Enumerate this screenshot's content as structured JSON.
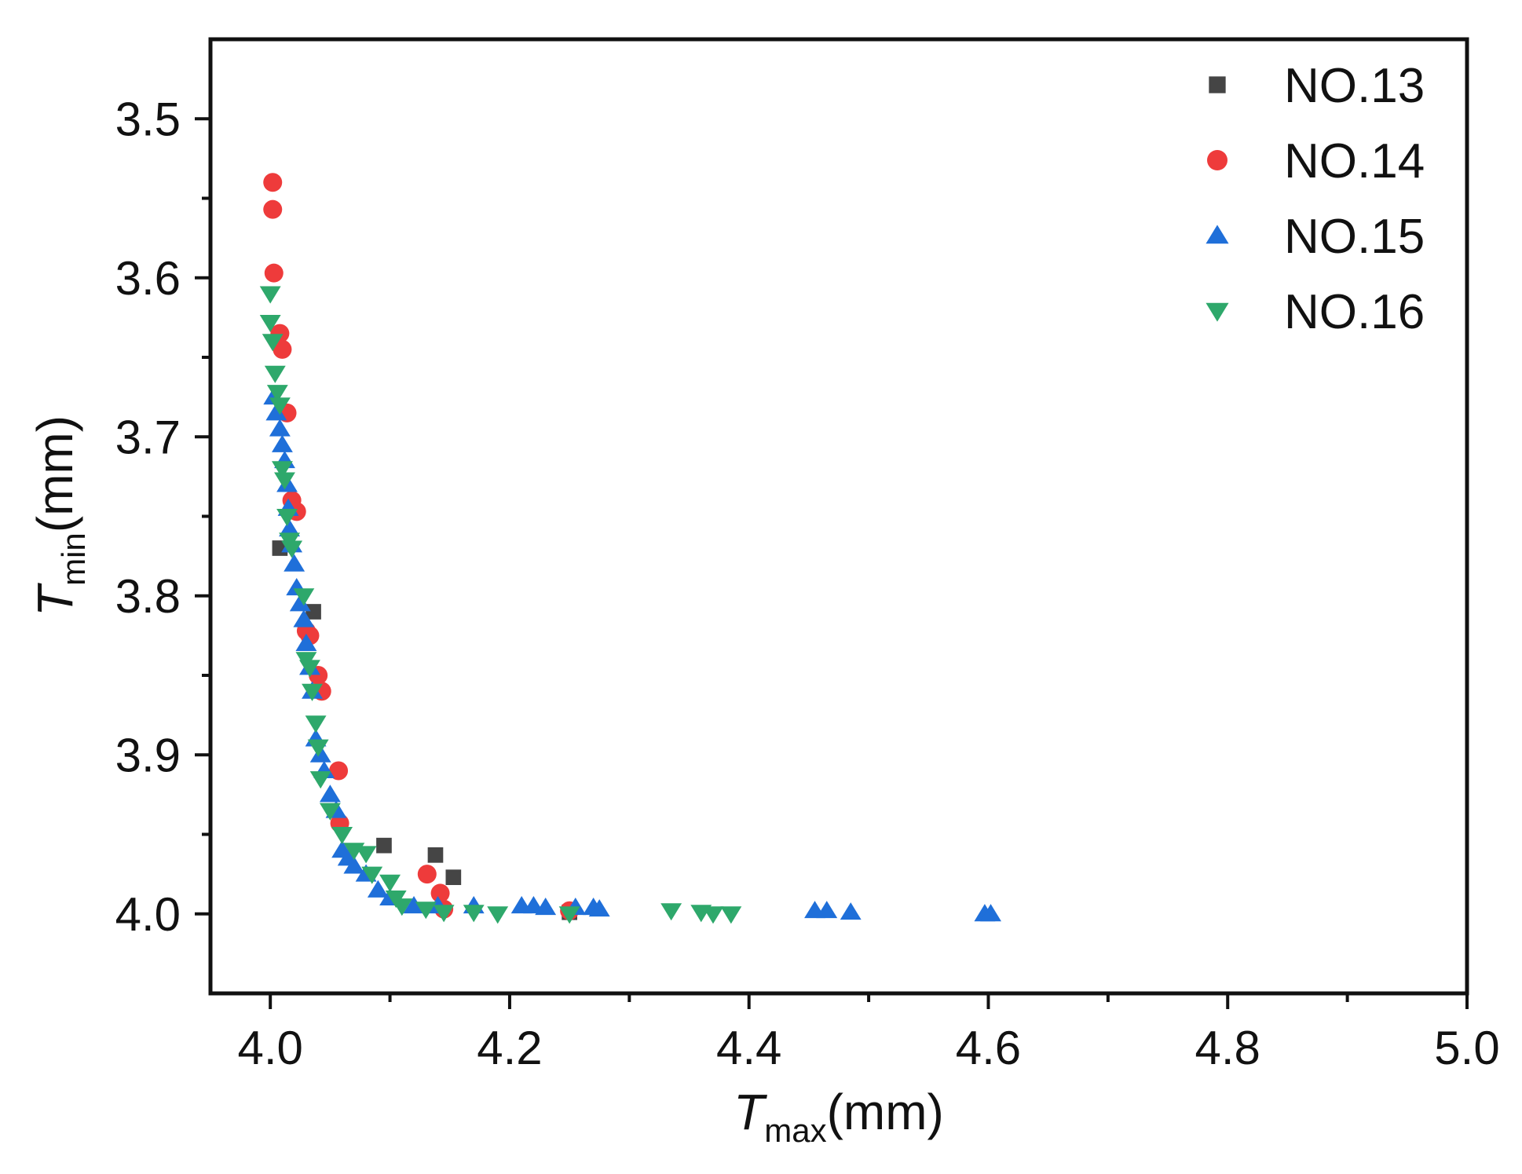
{
  "chart_data": {
    "type": "scatter",
    "title": "",
    "xlabel": {
      "main": "T",
      "sub": "max",
      "unit": "(mm)"
    },
    "ylabel": {
      "main": "T",
      "sub": "min",
      "unit": "(mm)"
    },
    "xlim": [
      3.95,
      5.0
    ],
    "ylim": [
      4.05,
      3.45
    ],
    "y_inverted": true,
    "x_ticks": [
      "4.0",
      "4.2",
      "4.4",
      "4.6",
      "4.8",
      "5.0"
    ],
    "x_tick_values": [
      4.0,
      4.2,
      4.4,
      4.6,
      4.8,
      5.0
    ],
    "x_minor_values": [
      4.1,
      4.3,
      4.5,
      4.7,
      4.9
    ],
    "y_ticks": [
      "3.5",
      "3.6",
      "3.7",
      "3.8",
      "3.9",
      "4.0"
    ],
    "y_tick_values": [
      3.5,
      3.6,
      3.7,
      3.8,
      3.9,
      4.0
    ],
    "y_minor_values": [
      3.55,
      3.65,
      3.75,
      3.85,
      3.95
    ],
    "grid": false,
    "legend_position": "top-right",
    "series": [
      {
        "name": "NO.13",
        "marker": "square",
        "color": "#454545",
        "points": [
          [
            4.008,
            3.77
          ],
          [
            4.036,
            3.81
          ],
          [
            4.095,
            3.957
          ],
          [
            4.138,
            3.963
          ],
          [
            4.153,
            3.977
          ],
          [
            4.25,
            3.999
          ]
        ]
      },
      {
        "name": "NO.14",
        "marker": "circle",
        "color": "#ee3b3b",
        "points": [
          [
            4.002,
            3.54
          ],
          [
            4.002,
            3.557
          ],
          [
            4.003,
            3.597
          ],
          [
            4.008,
            3.635
          ],
          [
            4.01,
            3.645
          ],
          [
            4.014,
            3.685
          ],
          [
            4.018,
            3.74
          ],
          [
            4.022,
            3.747
          ],
          [
            4.03,
            3.822
          ],
          [
            4.033,
            3.825
          ],
          [
            4.04,
            3.85
          ],
          [
            4.043,
            3.86
          ],
          [
            4.057,
            3.91
          ],
          [
            4.058,
            3.943
          ],
          [
            4.131,
            3.975
          ],
          [
            4.142,
            3.987
          ],
          [
            4.145,
            3.997
          ],
          [
            4.25,
            3.998
          ]
        ]
      },
      {
        "name": "NO.15",
        "marker": "triangle-up",
        "color": "#1f6fd9",
        "points": [
          [
            4.003,
            3.675
          ],
          [
            4.005,
            3.685
          ],
          [
            4.008,
            3.695
          ],
          [
            4.01,
            3.705
          ],
          [
            4.012,
            3.715
          ],
          [
            4.014,
            3.73
          ],
          [
            4.015,
            3.745
          ],
          [
            4.016,
            3.758
          ],
          [
            4.018,
            3.768
          ],
          [
            4.02,
            3.78
          ],
          [
            4.022,
            3.795
          ],
          [
            4.025,
            3.805
          ],
          [
            4.028,
            3.815
          ],
          [
            4.03,
            3.83
          ],
          [
            4.033,
            3.845
          ],
          [
            4.035,
            3.86
          ],
          [
            4.038,
            3.89
          ],
          [
            4.042,
            3.9
          ],
          [
            4.045,
            3.91
          ],
          [
            4.05,
            3.925
          ],
          [
            4.055,
            3.935
          ],
          [
            4.06,
            3.96
          ],
          [
            4.065,
            3.965
          ],
          [
            4.07,
            3.97
          ],
          [
            4.08,
            3.975
          ],
          [
            4.09,
            3.985
          ],
          [
            4.1,
            3.99
          ],
          [
            4.12,
            3.995
          ],
          [
            4.14,
            3.995
          ],
          [
            4.17,
            3.995
          ],
          [
            4.21,
            3.995
          ],
          [
            4.22,
            3.995
          ],
          [
            4.23,
            3.996
          ],
          [
            4.255,
            3.996
          ],
          [
            4.27,
            3.996
          ],
          [
            4.275,
            3.997
          ],
          [
            4.455,
            3.998
          ],
          [
            4.465,
            3.998
          ],
          [
            4.485,
            3.999
          ],
          [
            4.597,
            4.0
          ],
          [
            4.602,
            4.0
          ]
        ]
      },
      {
        "name": "NO.16",
        "marker": "triangle-down",
        "color": "#2ea86b",
        "points": [
          [
            4.0,
            3.61
          ],
          [
            4.0,
            3.628
          ],
          [
            4.002,
            3.64
          ],
          [
            4.004,
            3.66
          ],
          [
            4.006,
            3.672
          ],
          [
            4.008,
            3.68
          ],
          [
            4.01,
            3.72
          ],
          [
            4.012,
            3.727
          ],
          [
            4.014,
            3.75
          ],
          [
            4.016,
            3.765
          ],
          [
            4.018,
            3.77
          ],
          [
            4.028,
            3.8
          ],
          [
            4.03,
            3.84
          ],
          [
            4.033,
            3.845
          ],
          [
            4.035,
            3.86
          ],
          [
            4.038,
            3.88
          ],
          [
            4.04,
            3.895
          ],
          [
            4.042,
            3.915
          ],
          [
            4.05,
            3.935
          ],
          [
            4.06,
            3.95
          ],
          [
            4.07,
            3.96
          ],
          [
            4.08,
            3.962
          ],
          [
            4.085,
            3.975
          ],
          [
            4.1,
            3.98
          ],
          [
            4.105,
            3.99
          ],
          [
            4.11,
            3.995
          ],
          [
            4.13,
            3.997
          ],
          [
            4.145,
            3.999
          ],
          [
            4.17,
            3.999
          ],
          [
            4.19,
            4.0
          ],
          [
            4.25,
            4.0
          ],
          [
            4.335,
            3.998
          ],
          [
            4.36,
            3.999
          ],
          [
            4.37,
            4.0
          ],
          [
            4.385,
            4.0
          ]
        ]
      }
    ]
  }
}
